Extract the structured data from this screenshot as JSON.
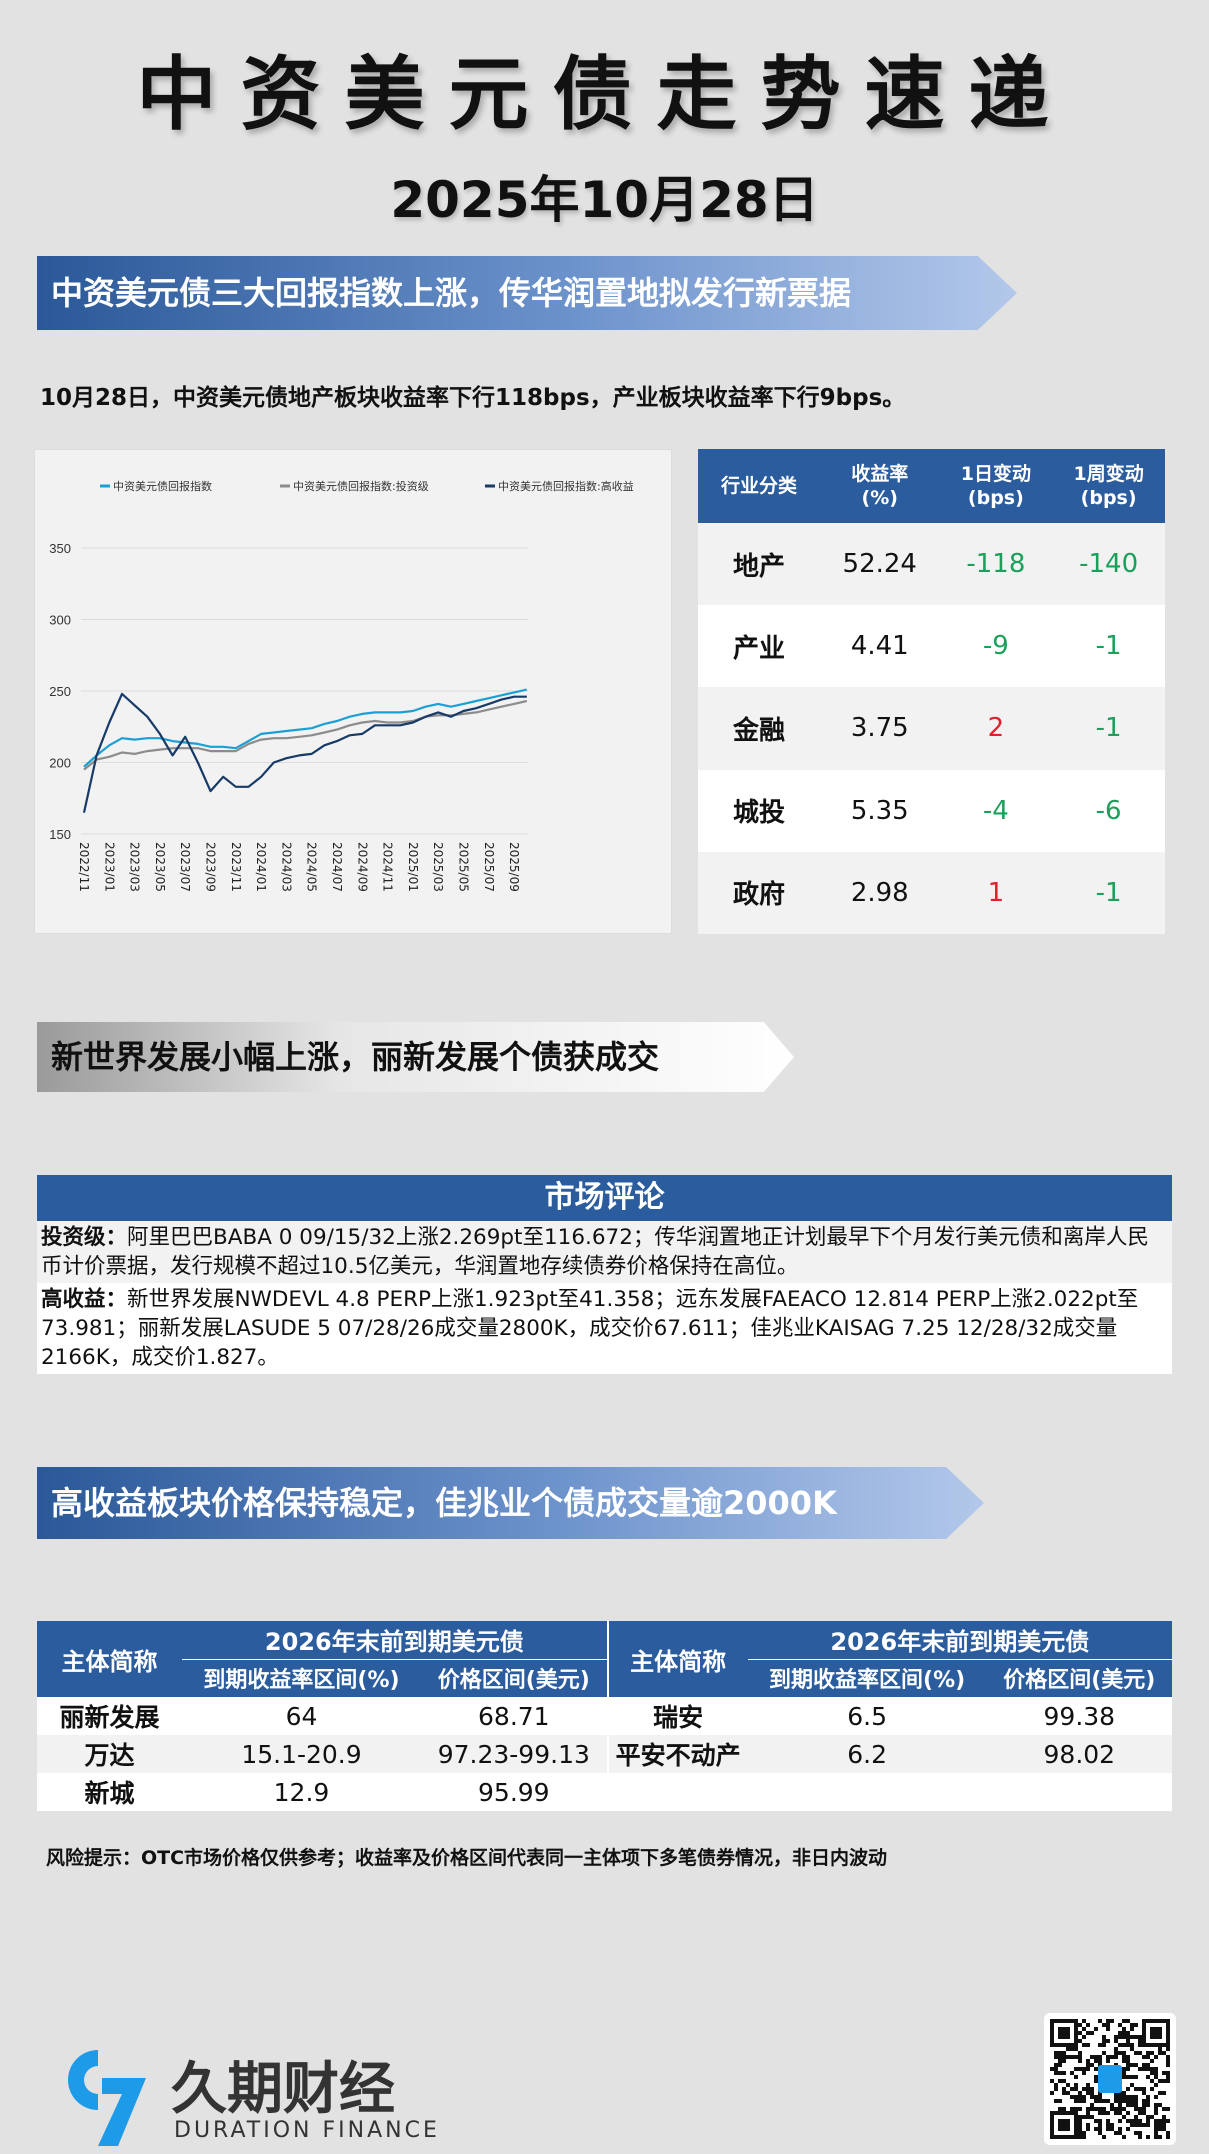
{
  "header": {
    "title": "中资美元债走势速递",
    "date": "2025年10月28日"
  },
  "section1": {
    "banner": "中资美元债三大回报指数上涨，传华润置地拟发行新票据",
    "summary": "10月28日，中资美元债地产板块收益率下行118bps，产业板块收益率下行9bps。"
  },
  "chart_data": {
    "type": "line",
    "title": "",
    "legend": [
      "中资美元债回报指数",
      "中资美元债回报指数:投资级",
      "中资美元债回报指数:高收益"
    ],
    "legend_position": "top",
    "grid": true,
    "ylim": [
      150,
      350
    ],
    "yticks": [
      "150",
      "200",
      "250",
      "300",
      "350"
    ],
    "xticks": [
      "2022/11",
      "2023/01",
      "2023/03",
      "2023/05",
      "2023/07",
      "2023/09",
      "2023/11",
      "2024/01",
      "2024/03",
      "2024/05",
      "2024/07",
      "2024/09",
      "2024/11",
      "2025/01",
      "2025/03",
      "2025/05",
      "2025/07",
      "2025/09"
    ],
    "x": [
      "2022/11",
      "2022/12",
      "2023/01",
      "2023/02",
      "2023/03",
      "2023/04",
      "2023/05",
      "2023/06",
      "2023/07",
      "2023/08",
      "2023/09",
      "2023/10",
      "2023/11",
      "2023/12",
      "2024/01",
      "2024/02",
      "2024/03",
      "2024/04",
      "2024/05",
      "2024/06",
      "2024/07",
      "2024/08",
      "2024/09",
      "2024/10",
      "2024/11",
      "2024/12",
      "2025/01",
      "2025/02",
      "2025/03",
      "2025/04",
      "2025/05",
      "2025/06",
      "2025/07",
      "2025/08",
      "2025/09",
      "2025/10"
    ],
    "series": [
      {
        "name": "中资美元债回报指数",
        "color": "#1ba0d6",
        "values": [
          197,
          205,
          212,
          217,
          216,
          217,
          217,
          215,
          214,
          213,
          211,
          211,
          210,
          215,
          220,
          221,
          222,
          223,
          224,
          227,
          229,
          232,
          234,
          235,
          235,
          235,
          236,
          239,
          241,
          239,
          241,
          243,
          245,
          247,
          249,
          251
        ]
      },
      {
        "name": "中资美元债回报指数:投资级",
        "color": "#8c8c8c",
        "values": [
          195,
          202,
          204,
          207,
          206,
          208,
          209,
          210,
          210,
          210,
          208,
          208,
          208,
          213,
          216,
          217,
          217,
          218,
          219,
          221,
          223,
          226,
          228,
          229,
          228,
          228,
          229,
          232,
          233,
          233,
          234,
          235,
          237,
          239,
          241,
          243
        ]
      },
      {
        "name": "中资美元债回报指数:高收益",
        "color": "#173a67",
        "values": [
          165,
          205,
          228,
          248,
          240,
          232,
          220,
          205,
          218,
          200,
          180,
          190,
          183,
          183,
          190,
          200,
          203,
          205,
          206,
          212,
          215,
          219,
          220,
          226,
          226,
          226,
          228,
          232,
          235,
          232,
          236,
          238,
          241,
          244,
          246,
          246
        ]
      }
    ]
  },
  "sector_table": {
    "headers": [
      "行业分类",
      "收益率\n(%)",
      "1日变动\n(bps)",
      "1周变动\n(bps)"
    ],
    "rows": [
      {
        "name": "地产",
        "yield": "52.24",
        "d1": "-118",
        "w1": "-140"
      },
      {
        "name": "产业",
        "yield": "4.41",
        "d1": "-9",
        "w1": "-1"
      },
      {
        "name": "金融",
        "yield": "3.75",
        "d1": "2",
        "w1": "-1"
      },
      {
        "name": "城投",
        "yield": "5.35",
        "d1": "-4",
        "w1": "-6"
      },
      {
        "name": "政府",
        "yield": "2.98",
        "d1": "1",
        "w1": "-1"
      }
    ],
    "colors": {
      "negative": "#1aa05a",
      "positive": "#e0202a"
    }
  },
  "section2": {
    "banner": "新世界发展小幅上涨，丽新发展个债获成交"
  },
  "commentary": {
    "title": "市场评论",
    "ig_label": "投资级：",
    "ig_text": "阿里巴巴BABA 0 09/15/32上涨2.269pt至116.672；传华润置地正计划最早下个月发行美元债和离岸人民币计价票据，发行规模不超过10.5亿美元，华润置地存续债券价格保持在高位。",
    "hy_label": "高收益：",
    "hy_text": "新世界发展NWDEVL 4.8 PERP上涨1.923pt至41.358；远东发展FAEACO 12.814 PERP上涨2.022pt至73.981；丽新发展LASUDE 5 07/28/26成交量2800K，成交价67.611；佳兆业KAISAG 7.25 12/28/32成交量2166K，成交价1.827。"
  },
  "section3": {
    "banner": "高收益板块价格保持稳定，佳兆业个债成交量逾2000K"
  },
  "bond_table": {
    "entity_header": "主体简称",
    "group_header": "2026年末前到期美元债",
    "yield_header": "到期收益率区间(%)",
    "price_header": "价格区间(美元)",
    "left": [
      {
        "name": "丽新发展",
        "yield": "64",
        "price": "68.71"
      },
      {
        "name": "万达",
        "yield": "15.1-20.9",
        "price": "97.23-99.13"
      },
      {
        "name": "新城",
        "yield": "12.9",
        "price": "95.99"
      }
    ],
    "right": [
      {
        "name": "瑞安",
        "yield": "6.5",
        "price": "99.38"
      },
      {
        "name": "平安不动产",
        "yield": "6.2",
        "price": "98.02"
      },
      {
        "name": "",
        "yield": "",
        "price": ""
      }
    ]
  },
  "risk_note": "风险提示：OTC市场价格仅供参考；收益率及价格区间代表同一主体项下多笔债券情况，非日内波动",
  "footer": {
    "brand_cn": "久期财经",
    "brand_en": "DURATION FINANCE",
    "brand_color": "#1e9be8"
  }
}
